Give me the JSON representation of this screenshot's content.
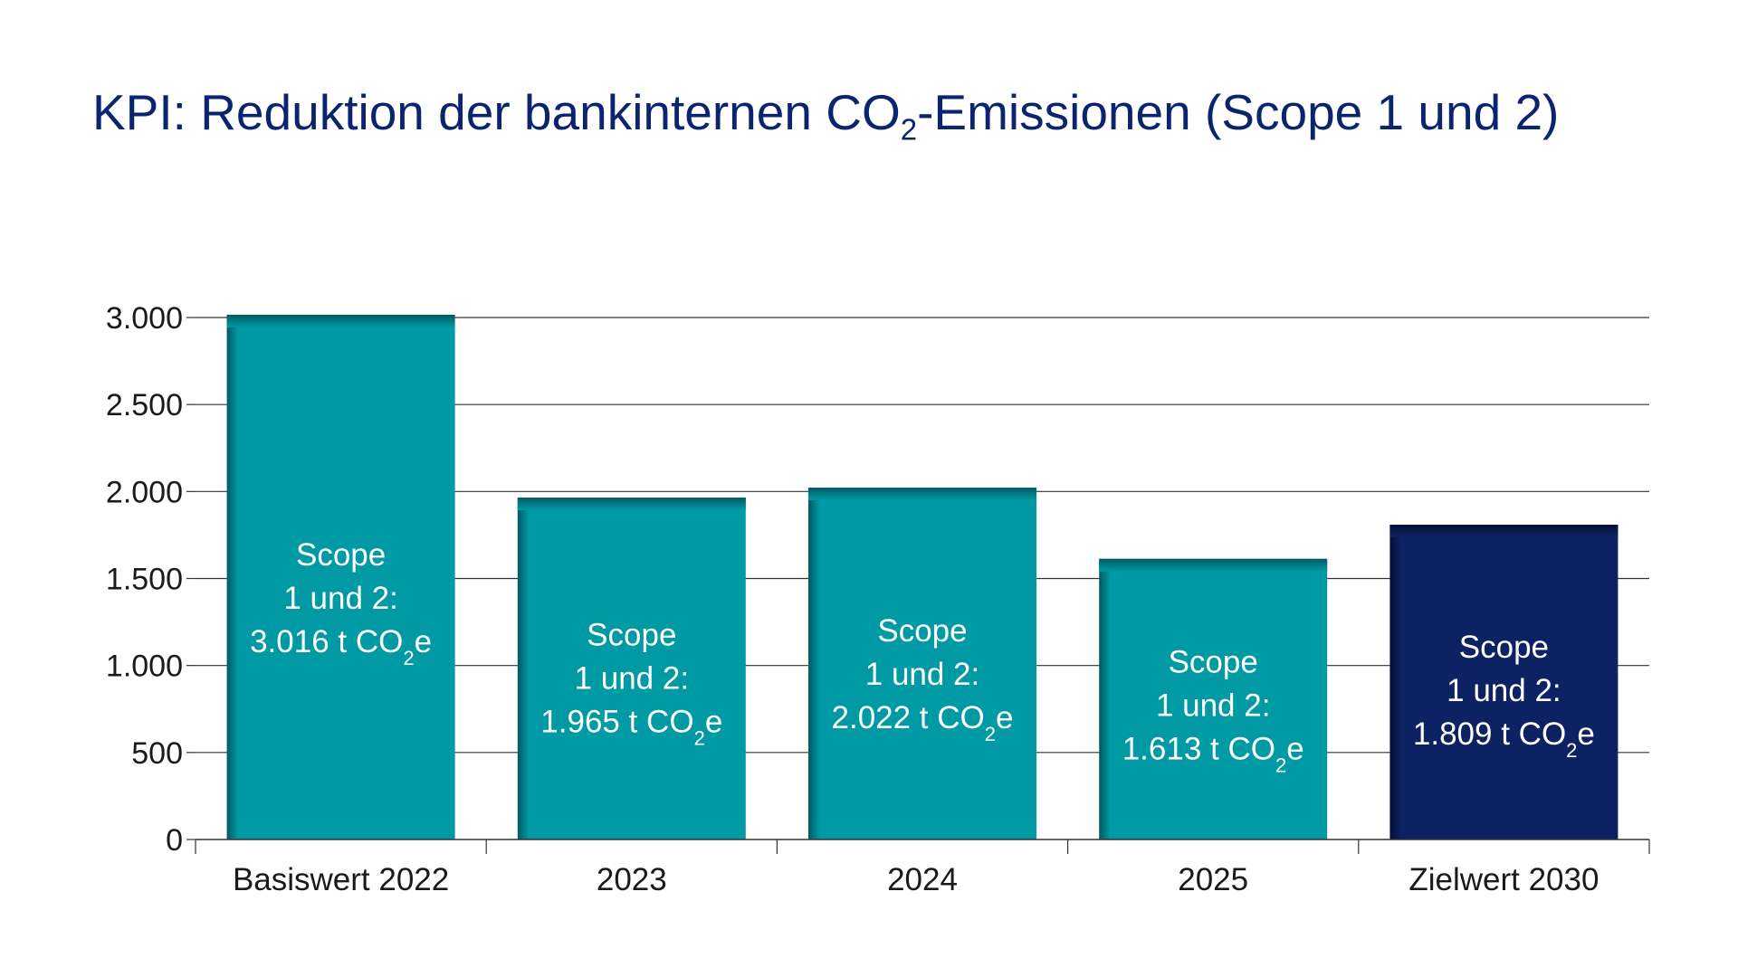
{
  "colors": {
    "title": "#0b2470",
    "bar_actual": "#009aa5",
    "bar_actual_dark": "#005a63",
    "bar_target": "#0d2263",
    "bar_target_dark": "#050f33",
    "grid": "#333333"
  },
  "chart_data": {
    "type": "bar",
    "title_main": "KPI: Reduktion der bankinternen CO",
    "title_sub": "2",
    "title_rest": "-Emissionen (Scope 1 und 2)",
    "categories": [
      "Basiswert 2022",
      "2023",
      "2024",
      "2025",
      "Zielwert 2030"
    ],
    "values": [
      3016,
      1965,
      2022,
      1613,
      1809
    ],
    "bar_kind": [
      "actual",
      "actual",
      "actual",
      "actual",
      "target"
    ],
    "bar_label_lines": [
      "Scope",
      "1 und 2:"
    ],
    "bar_value_labels": [
      "3.016",
      "1.965",
      "2.022",
      "1.613",
      "1.809"
    ],
    "bar_unit_prefix": "t CO",
    "bar_unit_sub": "2",
    "bar_unit_suffix": "e",
    "y_ticks": [
      0,
      500,
      1000,
      1500,
      2000,
      2500,
      3000
    ],
    "y_tick_labels": [
      "0",
      "500",
      "1.000",
      "1.500",
      "2.000",
      "2.500",
      "3.000"
    ],
    "ylim": [
      0,
      3000
    ],
    "grid": true,
    "xlabel": "",
    "ylabel": ""
  }
}
